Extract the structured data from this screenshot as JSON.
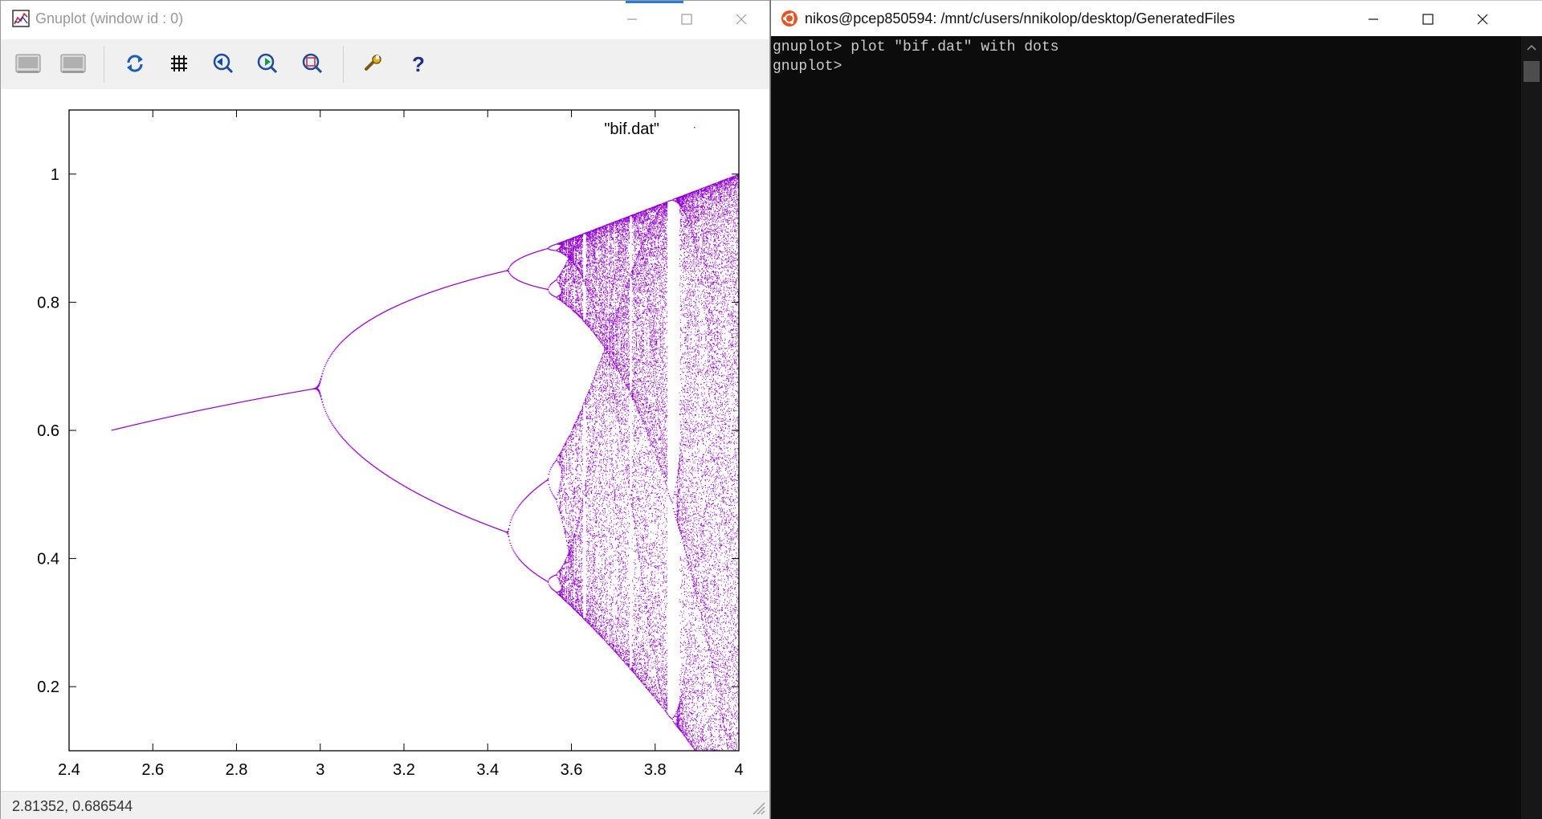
{
  "gnuplot_window": {
    "title": "Gnuplot (window id : 0)",
    "controls": {
      "minimize": "minimize",
      "maximize": "maximize",
      "close": "close"
    },
    "toolbar": [
      {
        "name": "copy-clipboard-button",
        "icon": "clipboard-image-icon"
      },
      {
        "name": "print-button",
        "icon": "printer-image-icon"
      },
      {
        "name": "replot-button",
        "icon": "refresh-icon"
      },
      {
        "name": "toggle-grid-button",
        "icon": "grid-icon"
      },
      {
        "name": "previous-zoom-button",
        "icon": "zoom-previous-icon"
      },
      {
        "name": "next-zoom-button",
        "icon": "zoom-next-icon"
      },
      {
        "name": "autoscale-button",
        "icon": "autoscale-icon"
      },
      {
        "name": "options-button",
        "icon": "wrench-icon"
      },
      {
        "name": "help-button",
        "icon": "question-mark-icon"
      }
    ],
    "status_text": "2.81352,  0.686544"
  },
  "chart_data": {
    "type": "scatter",
    "title": "",
    "xlabel": "",
    "ylabel": "",
    "xlim": [
      2.4,
      4.0
    ],
    "ylim": [
      0.1,
      1.1
    ],
    "xticks": [
      "2.4",
      "2.6",
      "2.8",
      "3",
      "3.2",
      "3.4",
      "3.6",
      "3.8",
      "4"
    ],
    "yticks": [
      "0.2",
      "0.4",
      "0.6",
      "0.8",
      "1"
    ],
    "legend": {
      "label": "\"bif.dat\"",
      "position": "top-right"
    },
    "series": [
      {
        "name": "\"bif.dat\"",
        "style": "dots",
        "color": "#9400d3",
        "description_points": [
          {
            "x": 2.5,
            "y": 0.6
          },
          {
            "x": 3.0,
            "y": 0.6667
          },
          {
            "x": 3.449,
            "y": 0.85
          },
          {
            "x": 3.449,
            "y": 0.44
          },
          {
            "x": 3.544,
            "y": 0.88
          },
          {
            "x": 3.544,
            "y": 0.36
          },
          {
            "x": 3.57,
            "y": 0.89
          },
          {
            "x": 3.83,
            "y": 0.96
          },
          {
            "x": 3.83,
            "y": 0.16
          },
          {
            "x": 4.0,
            "y": 1.0
          }
        ]
      }
    ],
    "grid": false
  },
  "terminal_window": {
    "title": "nikos@pcep850594: /mnt/c/users/nnikolop/desktop/GeneratedFiles",
    "lines": [
      "gnuplot> plot \"bif.dat\" with dots",
      "gnuplot> "
    ]
  }
}
